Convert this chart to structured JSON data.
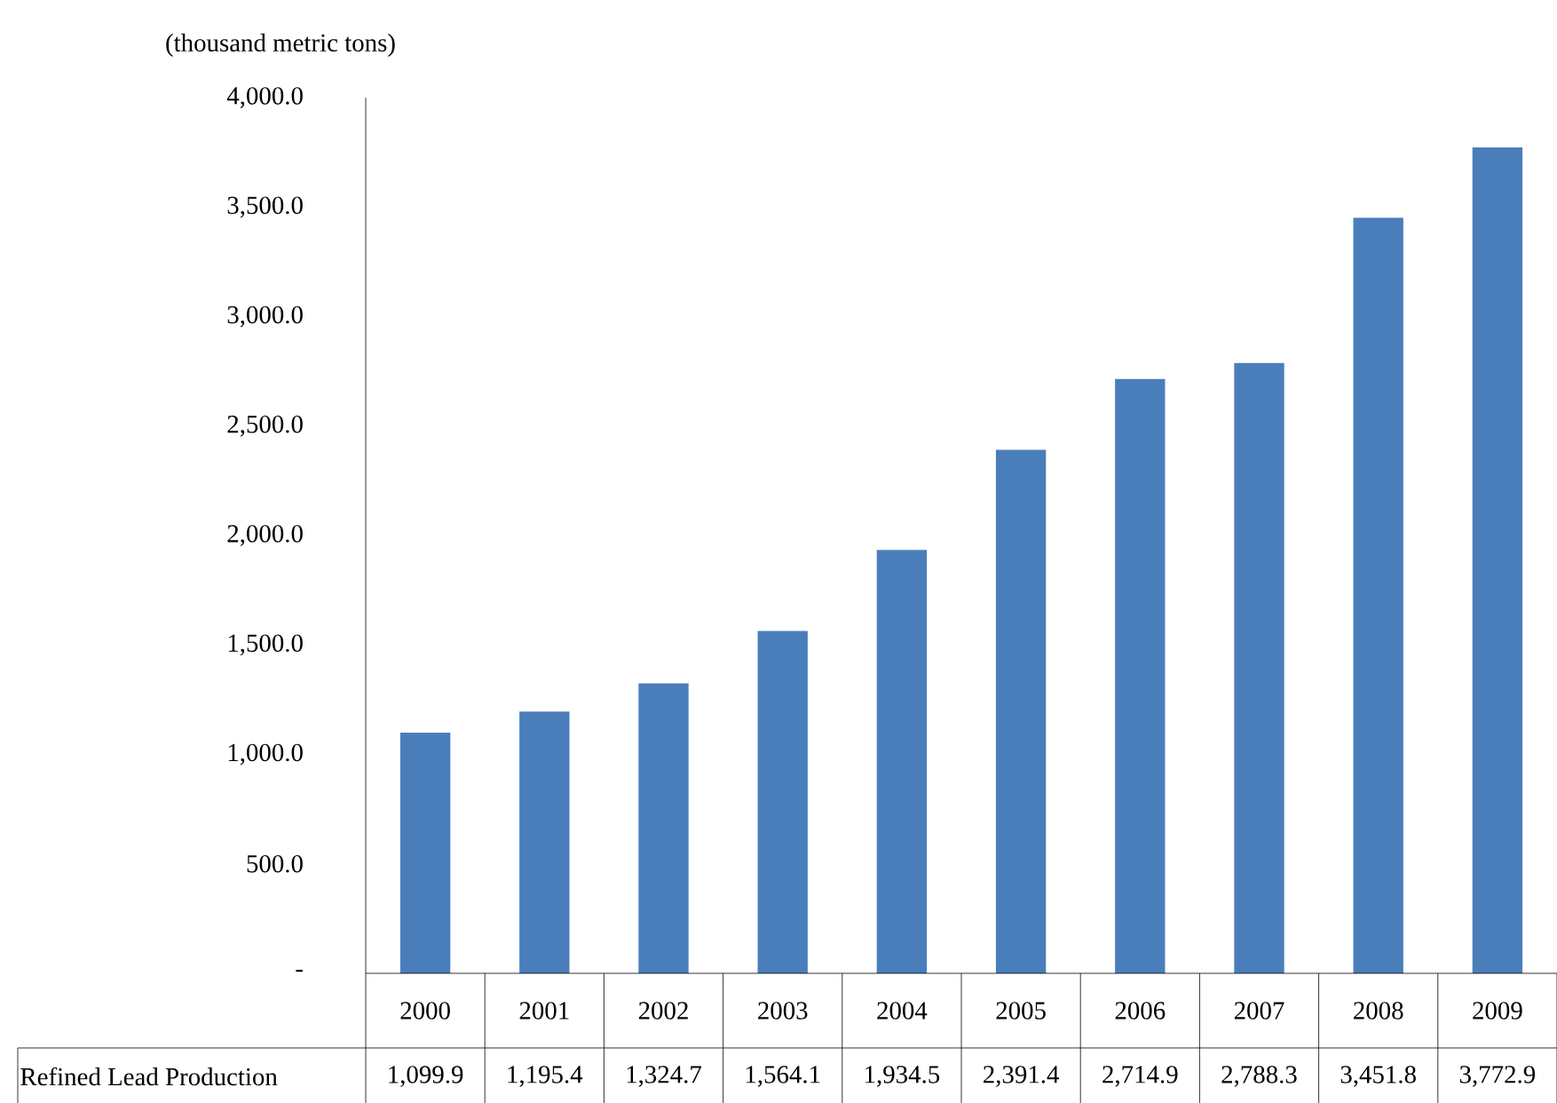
{
  "chart_data": {
    "type": "bar",
    "ylabel": "(thousand metric tons)",
    "categories": [
      "2000",
      "2001",
      "2002",
      "2003",
      "2004",
      "2005",
      "2006",
      "2007",
      "2008",
      "2009"
    ],
    "series": [
      {
        "name": "Refined Lead Production",
        "color": "#4a7ebb",
        "values": [
          1099.9,
          1195.4,
          1324.7,
          1564.1,
          1934.5,
          2391.4,
          2714.9,
          2788.3,
          3451.8,
          3772.9
        ],
        "value_labels": [
          "1,099.9",
          "1,195.4",
          "1,324.7",
          "1,564.1",
          "1,934.5",
          "2,391.4",
          "2,714.9",
          "2,788.3",
          "3,451.8",
          "3,772.9"
        ]
      }
    ],
    "ylim": [
      0,
      4000
    ],
    "yticks": [
      {
        "value": 0,
        "label": "-"
      },
      {
        "value": 500,
        "label": "500.0"
      },
      {
        "value": 1000,
        "label": "1,000.0"
      },
      {
        "value": 1500,
        "label": "1,500.0"
      },
      {
        "value": 2000,
        "label": "2,000.0"
      },
      {
        "value": 2500,
        "label": "2,500.0"
      },
      {
        "value": 3000,
        "label": "3,000.0"
      },
      {
        "value": 3500,
        "label": "3,500.0"
      },
      {
        "value": 4000,
        "label": "4,000.0"
      }
    ]
  }
}
